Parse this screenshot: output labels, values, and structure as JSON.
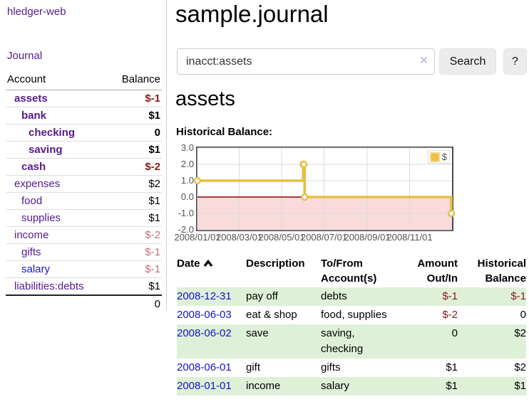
{
  "app": {
    "title": "hledger-web"
  },
  "sidebar": {
    "journal_label": "Journal",
    "accounts_table": {
      "headers": {
        "account": "Account",
        "balance": "Balance"
      },
      "rows": [
        {
          "name": "assets",
          "depth": 1,
          "bold": true,
          "balance": "$-1",
          "balance_style": "negative",
          "link_color": "purple"
        },
        {
          "name": "bank",
          "depth": 2,
          "bold": true,
          "balance": "$1",
          "balance_style": "normal",
          "link_color": "purple"
        },
        {
          "name": "checking",
          "depth": 3,
          "bold": true,
          "balance": "0",
          "balance_style": "normal",
          "link_color": "purple"
        },
        {
          "name": "saving",
          "depth": 3,
          "bold": true,
          "balance": "$1",
          "balance_style": "normal",
          "link_color": "purple"
        },
        {
          "name": "cash",
          "depth": 2,
          "bold": true,
          "balance": "$-2",
          "balance_style": "negative",
          "link_color": "purple"
        },
        {
          "name": "expenses",
          "depth": 1,
          "bold": false,
          "balance": "$2",
          "balance_style": "normal",
          "link_color": "purple"
        },
        {
          "name": "food",
          "depth": 2,
          "bold": false,
          "balance": "$1",
          "balance_style": "normal",
          "link_color": "purple"
        },
        {
          "name": "supplies",
          "depth": 2,
          "bold": false,
          "balance": "$1",
          "balance_style": "normal",
          "link_color": "purple"
        },
        {
          "name": "income",
          "depth": 1,
          "bold": false,
          "balance": "$-2",
          "balance_style": "negative-muted",
          "link_color": "purple"
        },
        {
          "name": "gifts",
          "depth": 2,
          "bold": false,
          "balance": "$-1",
          "balance_style": "negative-muted",
          "link_color": "purple"
        },
        {
          "name": "salary",
          "depth": 2,
          "bold": false,
          "balance": "$-1",
          "balance_style": "negative-muted",
          "link_color": "blue"
        },
        {
          "name": "liabilities:debts",
          "depth": 1,
          "bold": false,
          "balance": "$1",
          "balance_style": "normal",
          "link_color": "purple"
        }
      ],
      "total": "0"
    }
  },
  "header": {
    "title": "sample.journal"
  },
  "search": {
    "value": "inacct:assets",
    "clear_icon": "×",
    "button_label": "Search",
    "help_label": "?"
  },
  "account_page": {
    "title": "assets",
    "chart_label": "Historical Balance:"
  },
  "chart_data": {
    "type": "line",
    "step": true,
    "title": "Historical Balance:",
    "x_start": "2008-01-01",
    "x_end": "2009-01-01",
    "ylim": [
      -2,
      3
    ],
    "yticks": [
      "3.0",
      "2.0",
      "1.0",
      "0.0",
      "-1.0",
      "-2.0"
    ],
    "xticks": [
      "2008/01/01",
      "2008/03/01",
      "2008/05/01",
      "2008/07/01",
      "2008/09/01",
      "2008/11/01"
    ],
    "grid": true,
    "legend_position": "top-right",
    "series": [
      {
        "name": "$",
        "color": "#e6bf45",
        "points": [
          [
            "2008-01-01",
            1
          ],
          [
            "2008-06-01",
            2
          ],
          [
            "2008-06-02",
            2
          ],
          [
            "2008-06-03",
            0
          ],
          [
            "2008-12-31",
            -1
          ]
        ]
      }
    ],
    "negative_region_fill": "#f9dbdb",
    "zero_line_color": "#8b0000",
    "gridline_color": "#dcdcdc"
  },
  "register": {
    "headers": {
      "date": "Date",
      "sort_icon": "chevron-up",
      "description": "Description",
      "accounts": "To/From Account(s)",
      "amount": "Amount Out/In",
      "balance": "Historical Balance"
    },
    "rows": [
      {
        "date": "2008-12-31",
        "description": "pay off",
        "accounts": "debts",
        "amount": "$-1",
        "amount_style": "negative",
        "balance": "$-1",
        "balance_style": "negative"
      },
      {
        "date": "2008-06-03",
        "description": "eat & shop",
        "accounts": "food, supplies",
        "amount": "$-2",
        "amount_style": "negative",
        "balance": "0",
        "balance_style": "normal"
      },
      {
        "date": "2008-06-02",
        "description": "save",
        "accounts": "saving, checking",
        "amount": "0",
        "amount_style": "normal",
        "balance": "$2",
        "balance_style": "normal"
      },
      {
        "date": "2008-06-01",
        "description": "gift",
        "accounts": "gifts",
        "amount": "$1",
        "amount_style": "normal",
        "balance": "$2",
        "balance_style": "normal"
      },
      {
        "date": "2008-01-01",
        "description": "income",
        "accounts": "salary",
        "amount": "$1",
        "amount_style": "normal",
        "balance": "$1",
        "balance_style": "normal"
      }
    ]
  },
  "colors": {
    "link_purple": "#551a8b",
    "link_blue": "#1717d6",
    "negative": "#8b1a1a",
    "negative_muted": "#bf7276",
    "row_stripe_green": "#dff0d8",
    "chart_line": "#e6bf45",
    "chart_negative_fill": "#f9dbdb",
    "chart_zero_line": "#8b0000"
  }
}
